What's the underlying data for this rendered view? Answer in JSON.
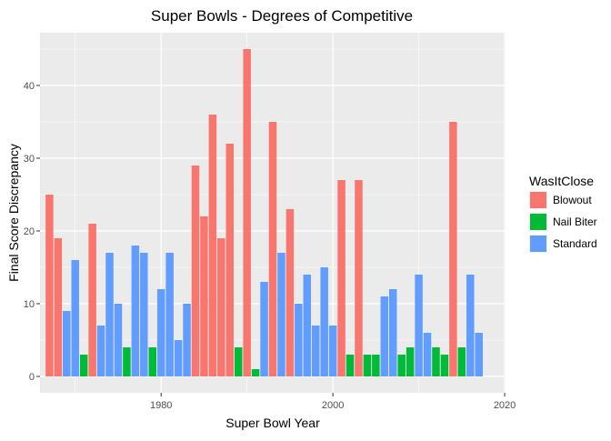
{
  "chart_data": {
    "type": "bar",
    "title": "Super Bowls - Degrees of Competitive",
    "xlabel": "Super Bowl Year",
    "ylabel": "Final Score Discrepancy",
    "xlim": [
      1965.9,
      2020.1
    ],
    "ylim": [
      -2.25,
      47.25
    ],
    "x_ticks": [
      1980,
      2000,
      2020
    ],
    "y_ticks": [
      0,
      10,
      20,
      30,
      40
    ],
    "grid": true,
    "legend": {
      "title": "WasItClose",
      "position": "right",
      "entries": [
        {
          "label": "Blowout",
          "color": "#F8766D"
        },
        {
          "label": "Nail Biter",
          "color": "#00BA38"
        },
        {
          "label": "Standard",
          "color": "#619CFF"
        }
      ]
    },
    "colors": {
      "Blowout": "#F8766D",
      "Nail Biter": "#00BA38",
      "Standard": "#619CFF"
    },
    "bars": [
      {
        "year": 1967,
        "value": 25,
        "category": "Blowout"
      },
      {
        "year": 1968,
        "value": 19,
        "category": "Blowout"
      },
      {
        "year": 1969,
        "value": 9,
        "category": "Standard"
      },
      {
        "year": 1970,
        "value": 16,
        "category": "Standard"
      },
      {
        "year": 1971,
        "value": 3,
        "category": "Nail Biter"
      },
      {
        "year": 1972,
        "value": 21,
        "category": "Blowout"
      },
      {
        "year": 1973,
        "value": 7,
        "category": "Standard"
      },
      {
        "year": 1974,
        "value": 17,
        "category": "Standard"
      },
      {
        "year": 1975,
        "value": 10,
        "category": "Standard"
      },
      {
        "year": 1976,
        "value": 4,
        "category": "Nail Biter"
      },
      {
        "year": 1977,
        "value": 18,
        "category": "Standard"
      },
      {
        "year": 1978,
        "value": 17,
        "category": "Standard"
      },
      {
        "year": 1979,
        "value": 4,
        "category": "Nail Biter"
      },
      {
        "year": 1980,
        "value": 12,
        "category": "Standard"
      },
      {
        "year": 1981,
        "value": 17,
        "category": "Standard"
      },
      {
        "year": 1982,
        "value": 5,
        "category": "Standard"
      },
      {
        "year": 1983,
        "value": 10,
        "category": "Standard"
      },
      {
        "year": 1984,
        "value": 29,
        "category": "Blowout"
      },
      {
        "year": 1985,
        "value": 22,
        "category": "Blowout"
      },
      {
        "year": 1986,
        "value": 36,
        "category": "Blowout"
      },
      {
        "year": 1987,
        "value": 19,
        "category": "Blowout"
      },
      {
        "year": 1988,
        "value": 32,
        "category": "Blowout"
      },
      {
        "year": 1989,
        "value": 4,
        "category": "Nail Biter"
      },
      {
        "year": 1990,
        "value": 45,
        "category": "Blowout"
      },
      {
        "year": 1991,
        "value": 1,
        "category": "Nail Biter"
      },
      {
        "year": 1992,
        "value": 13,
        "category": "Standard"
      },
      {
        "year": 1993,
        "value": 35,
        "category": "Blowout"
      },
      {
        "year": 1994,
        "value": 17,
        "category": "Standard"
      },
      {
        "year": 1995,
        "value": 23,
        "category": "Blowout"
      },
      {
        "year": 1996,
        "value": 10,
        "category": "Standard"
      },
      {
        "year": 1997,
        "value": 14,
        "category": "Standard"
      },
      {
        "year": 1998,
        "value": 7,
        "category": "Standard"
      },
      {
        "year": 1999,
        "value": 15,
        "category": "Standard"
      },
      {
        "year": 2000,
        "value": 7,
        "category": "Standard"
      },
      {
        "year": 2001,
        "value": 27,
        "category": "Blowout"
      },
      {
        "year": 2002,
        "value": 3,
        "category": "Nail Biter"
      },
      {
        "year": 2003,
        "value": 27,
        "category": "Blowout"
      },
      {
        "year": 2004,
        "value": 3,
        "category": "Nail Biter"
      },
      {
        "year": 2005,
        "value": 3,
        "category": "Nail Biter"
      },
      {
        "year": 2006,
        "value": 11,
        "category": "Standard"
      },
      {
        "year": 2007,
        "value": 12,
        "category": "Standard"
      },
      {
        "year": 2008,
        "value": 3,
        "category": "Nail Biter"
      },
      {
        "year": 2009,
        "value": 4,
        "category": "Nail Biter"
      },
      {
        "year": 2010,
        "value": 14,
        "category": "Standard"
      },
      {
        "year": 2011,
        "value": 6,
        "category": "Standard"
      },
      {
        "year": 2012,
        "value": 4,
        "category": "Nail Biter"
      },
      {
        "year": 2013,
        "value": 3,
        "category": "Nail Biter"
      },
      {
        "year": 2014,
        "value": 35,
        "category": "Blowout"
      },
      {
        "year": 2015,
        "value": 4,
        "category": "Nail Biter"
      },
      {
        "year": 2016,
        "value": 14,
        "category": "Standard"
      },
      {
        "year": 2017,
        "value": 6,
        "category": "Standard"
      }
    ]
  }
}
